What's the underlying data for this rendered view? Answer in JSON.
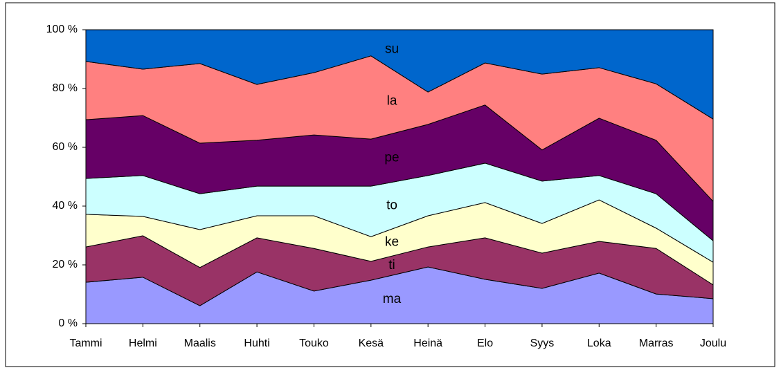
{
  "chart_data": {
    "type": "stacked_area_100",
    "categories": [
      "Tammi",
      "Helmi",
      "Maalis",
      "Huhti",
      "Touko",
      "Kesä",
      "Heinä",
      "Elo",
      "Syys",
      "Loka",
      "Marras",
      "Joulu"
    ],
    "series": [
      {
        "name": "ma",
        "color": "#9999ff",
        "values": [
          14.1,
          15.8,
          6.1,
          17.6,
          11.1,
          14.8,
          19.3,
          15.1,
          12.0,
          17.2,
          10.1,
          8.5
        ]
      },
      {
        "name": "ti",
        "color": "#993366",
        "values": [
          12.0,
          14.1,
          13.0,
          11.6,
          14.5,
          6.4,
          6.8,
          14.1,
          12.0,
          10.8,
          15.5,
          4.7
        ]
      },
      {
        "name": "ke",
        "color": "#ffffcc",
        "values": [
          11.1,
          6.6,
          12.9,
          7.5,
          11.1,
          8.4,
          10.6,
          12.0,
          10.1,
          14.1,
          6.9,
          7.7
        ]
      },
      {
        "name": "to",
        "color": "#ccffff",
        "values": [
          12.2,
          13.9,
          12.2,
          10.1,
          10.1,
          17.2,
          13.7,
          13.4,
          14.4,
          8.3,
          11.7,
          7.3
        ]
      },
      {
        "name": "pe",
        "color": "#660066",
        "values": [
          20.0,
          20.4,
          17.2,
          15.6,
          17.4,
          16.0,
          17.4,
          19.8,
          10.6,
          19.5,
          18.2,
          13.4
        ]
      },
      {
        "name": "la",
        "color": "#ff8080",
        "values": [
          19.8,
          15.8,
          27.1,
          19.0,
          21.2,
          28.3,
          11.0,
          14.3,
          25.8,
          17.2,
          19.2,
          28.0
        ]
      },
      {
        "name": "su",
        "color": "#0066cc",
        "values": [
          10.8,
          13.4,
          11.5,
          18.6,
          14.6,
          8.9,
          21.2,
          11.3,
          15.1,
          12.9,
          18.4,
          30.4
        ]
      }
    ],
    "ylim": [
      0,
      100
    ],
    "yticks": [
      {
        "value": 0,
        "label": "0 %"
      },
      {
        "value": 20,
        "label": "20 %"
      },
      {
        "value": 40,
        "label": "40 %"
      },
      {
        "value": 60,
        "label": "60 %"
      },
      {
        "value": 80,
        "label": "80 %"
      },
      {
        "value": 100,
        "label": "100 %"
      }
    ]
  }
}
